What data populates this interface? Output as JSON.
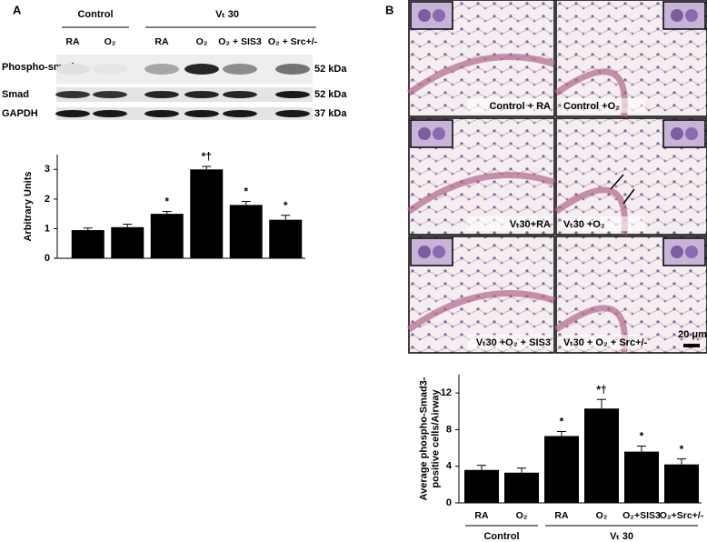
{
  "panel_labels": [
    "A",
    "B"
  ],
  "blot": {
    "groups": [
      "Control",
      "Vₜ 30"
    ],
    "lanes": [
      "RA",
      "O₂",
      "RA",
      "O₂",
      "O₂ + SIS3",
      "O₂ + Src+/-"
    ],
    "rows": [
      {
        "name": "Phospho-smad",
        "size": "52 kDa"
      },
      {
        "name": "Smad",
        "size": "52 kDa"
      },
      {
        "name": "GAPDH",
        "size": "37 kDa"
      }
    ]
  },
  "micrographs": {
    "labels": [
      "Control + RA",
      "Control +O₂",
      "Vₜ30+RA",
      "Vₜ30 +O₂",
      "Vₜ30 +O₂ + SIS3",
      "Vₜ30 + O₂ + Src+/-"
    ],
    "scale_bar": "20 μm"
  },
  "chart_data": [
    {
      "type": "bar",
      "y_label": [
        "Arbitrary Units"
      ],
      "values": [
        0.95,
        1.05,
        1.5,
        3.0,
        1.8,
        1.3
      ],
      "errors": [
        0.07,
        0.1,
        0.08,
        0.1,
        0.12,
        0.15
      ],
      "annotations": [
        null,
        null,
        "*",
        "*†",
        "*",
        "*"
      ],
      "color": "#000000",
      "ylim": [
        0,
        3.5
      ],
      "yticks": [
        0,
        1,
        2,
        3
      ]
    },
    {
      "type": "bar",
      "y_label": [
        "Average phospho-Smad3-",
        "positive cells/Airway"
      ],
      "categories": [
        "RA",
        "O₂",
        "RA",
        "O₂",
        "O₂+SIS3",
        "O₂+Src+/-"
      ],
      "groups": [
        "Control",
        "Vₜ 30"
      ],
      "values": [
        3.6,
        3.3,
        7.3,
        10.3,
        5.6,
        4.2
      ],
      "errors": [
        0.5,
        0.5,
        0.5,
        1.0,
        0.6,
        0.6
      ],
      "annotations": [
        null,
        null,
        "*",
        "*†",
        "*",
        "*"
      ],
      "color": "#000000",
      "ylim": [
        0,
        14
      ],
      "yticks": [
        0,
        4,
        8,
        12
      ]
    }
  ]
}
